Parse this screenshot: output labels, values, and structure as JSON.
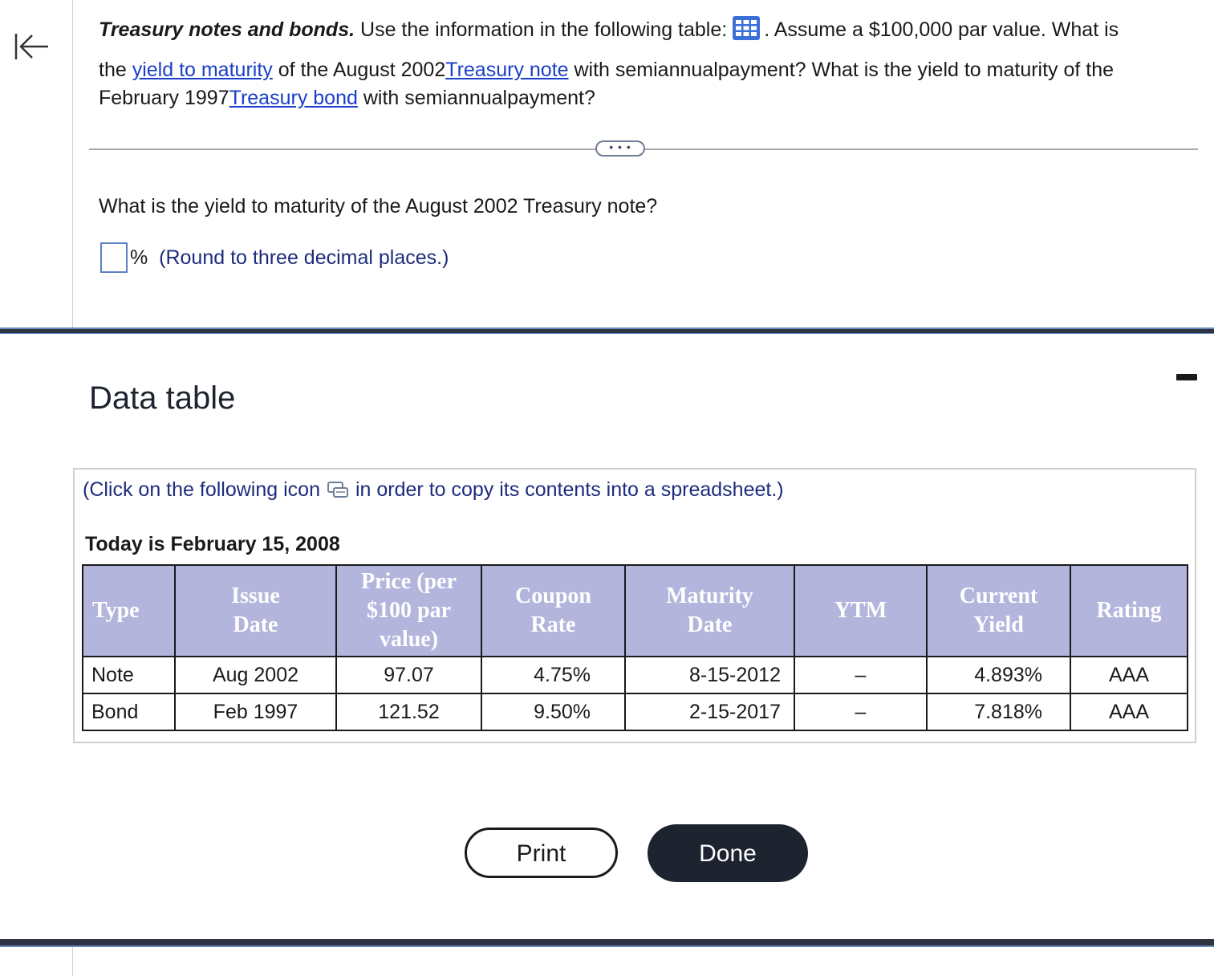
{
  "question": {
    "title": "Treasury notes and bonds.",
    "text_1": " Use the information in the following table:",
    "text_2": ". Assume a $100,000 par value. What is",
    "text_3": "the ",
    "link_ytm": "yield to maturity",
    "text_4": " of the August 2002",
    "link_note": "Treasury note",
    "text_5": " with semiannualpayment? What is the yield to maturity of the",
    "text_6": "February 1997",
    "link_bond": "Treasury bond",
    "text_7": " with semiannualpayment?"
  },
  "more_button": "• • •",
  "subquestion": "What is the yield to maturity of the August 2002 Treasury note?",
  "answer": {
    "value": "",
    "unit": "%",
    "hint": "(Round to three decimal places.)"
  },
  "panel": {
    "title": "Data table",
    "copy_instruction_1": "(Click on the following icon",
    "copy_instruction_2": "in order to copy its contents into a spreadsheet.)",
    "today": "Today is February 15, 2008"
  },
  "table": {
    "headers": [
      "Type",
      "Issue Date",
      "Price (per $100 par value)",
      "Coupon Rate",
      "Maturity Date",
      "YTM",
      "Current Yield",
      "Rating"
    ],
    "rows": [
      [
        "Note",
        "Aug 2002",
        "97.07",
        "4.75%",
        "8-15-2012",
        "–",
        "4.893%",
        "AAA"
      ],
      [
        "Bond",
        "Feb 1997",
        "121.52",
        "9.50%",
        "2-15-2017",
        "–",
        "7.818%",
        "AAA"
      ]
    ]
  },
  "buttons": {
    "print": "Print",
    "done": "Done"
  },
  "colors": {
    "link": "#1a3ec8",
    "header_bg": "#b3b5dc",
    "done_bg": "#1e2330",
    "panel_bar": "#2e3442"
  }
}
